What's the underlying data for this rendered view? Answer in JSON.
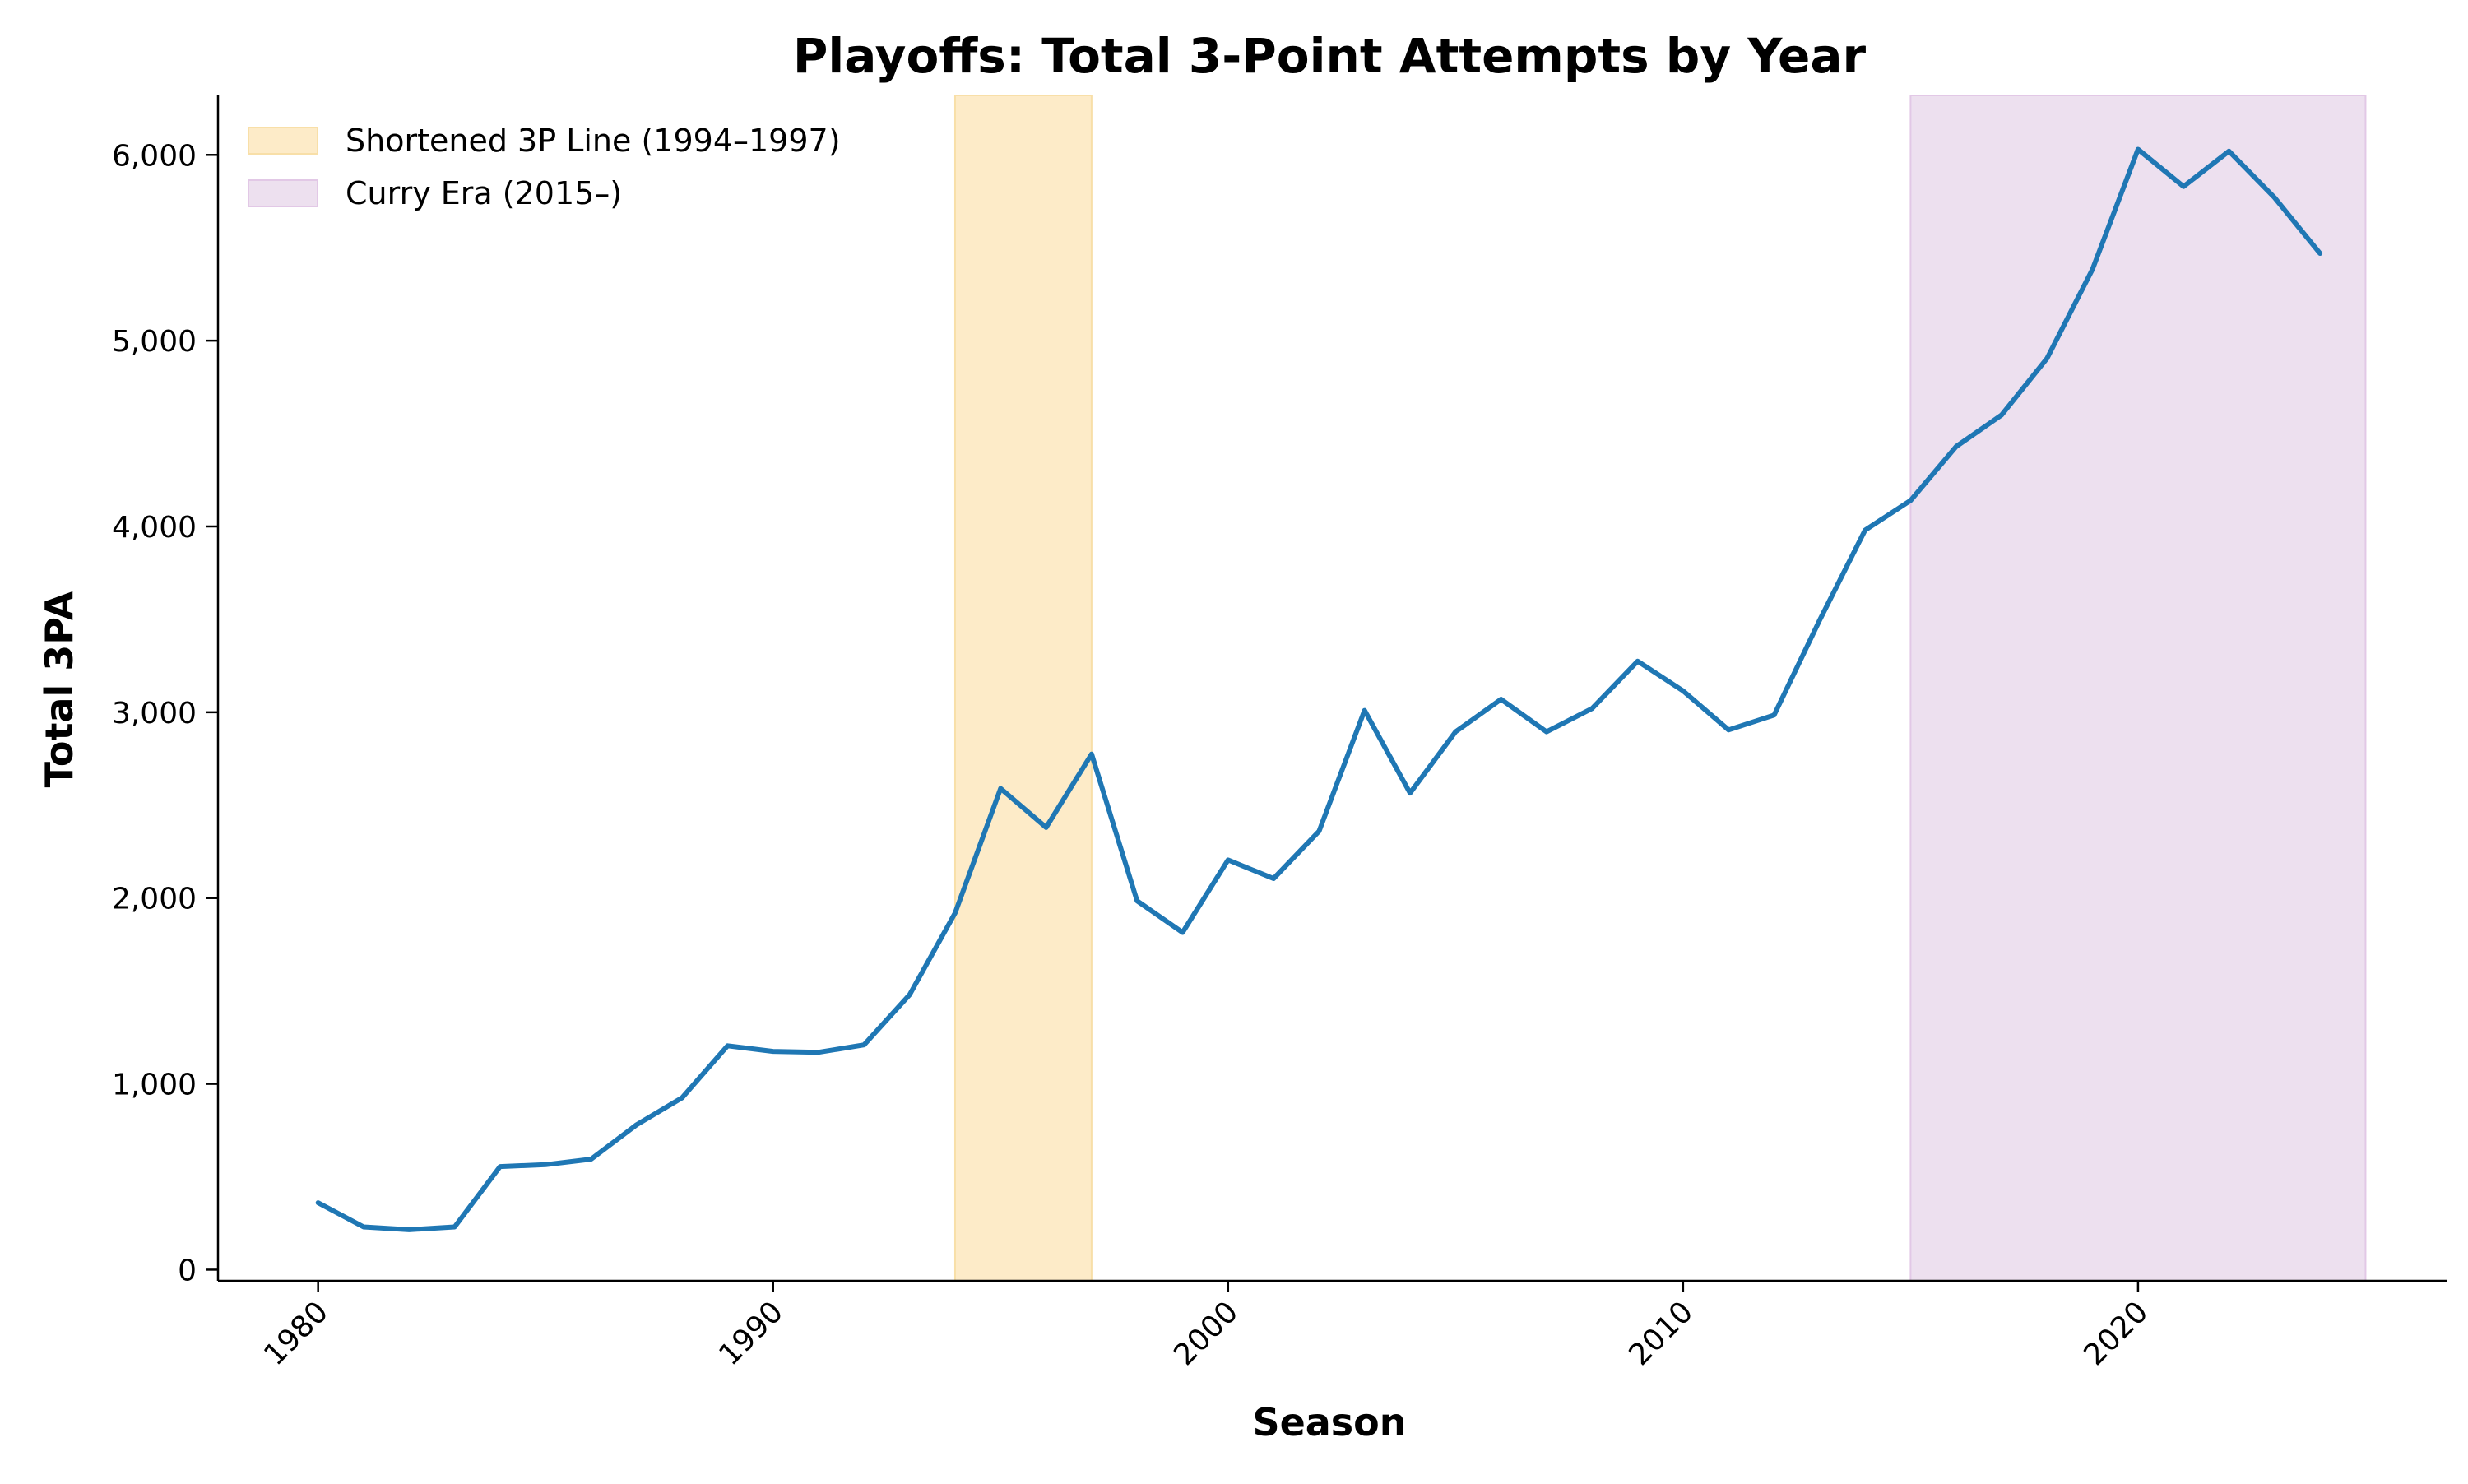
{
  "chart_data": {
    "type": "line",
    "title": "Playoffs: Total 3-Point Attempts by Year",
    "xlabel": "Season",
    "ylabel": "Total 3PA",
    "xlim": [
      1977.8,
      2026.8
    ],
    "ylim": [
      -60,
      6320
    ],
    "xticks": [
      1980,
      1990,
      2000,
      2010,
      2020
    ],
    "xtick_labels": [
      "1980",
      "1990",
      "2000",
      "2010",
      "2020"
    ],
    "yticks": [
      0,
      1000,
      2000,
      3000,
      4000,
      5000,
      6000
    ],
    "ytick_labels": [
      "0",
      "1,000",
      "2,000",
      "3,000",
      "4,000",
      "5,000",
      "6,000"
    ],
    "grid": false,
    "legend_placement": "top-left",
    "series": [
      {
        "color": "#1f77b4",
        "x": [
          1980,
          1981,
          1982,
          1983,
          1984,
          1985,
          1986,
          1987,
          1988,
          1989,
          1990,
          1991,
          1992,
          1993,
          1994,
          1995,
          1996,
          1997,
          1998,
          1999,
          2000,
          2001,
          2002,
          2003,
          2004,
          2005,
          2006,
          2007,
          2008,
          2009,
          2010,
          2011,
          2012,
          2013,
          2014,
          2015,
          2016,
          2017,
          2018,
          2019,
          2020,
          2021,
          2022,
          2023,
          2024
        ],
        "y": [
          360,
          230,
          215,
          230,
          555,
          565,
          595,
          780,
          925,
          1205,
          1175,
          1170,
          1210,
          1480,
          1920,
          2590,
          2380,
          2775,
          1985,
          1815,
          2205,
          2105,
          2360,
          3010,
          2565,
          2895,
          3070,
          2895,
          3020,
          3275,
          3115,
          2905,
          2985,
          3495,
          3980,
          4140,
          4430,
          4600,
          4905,
          5385,
          6030,
          5830,
          6020,
          5770,
          5470
        ]
      }
    ],
    "shaded_regions": [
      {
        "label": "Shortened 3P Line (1994–1997)",
        "x_start": 1994,
        "x_end": 1997,
        "color": "#fdebc8",
        "edge_color": "#f8dfa8"
      },
      {
        "label": "Curry Era (2015–)",
        "x_start": 2015,
        "x_end": 2025,
        "color": "#ede0ef",
        "edge_color": "#e2c8e6"
      }
    ]
  }
}
